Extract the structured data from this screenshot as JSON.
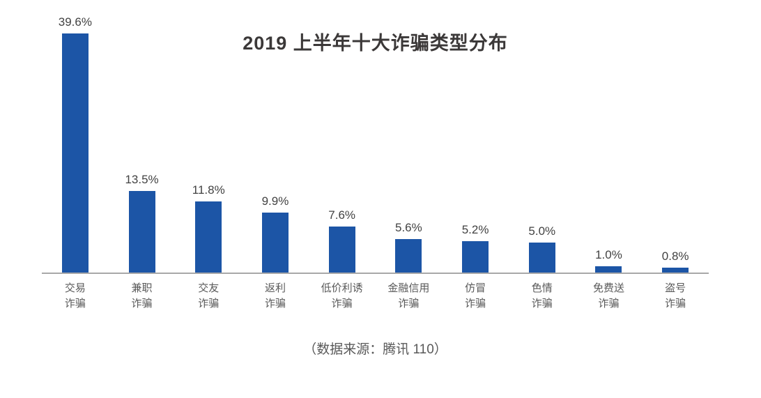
{
  "chart_data": {
    "type": "bar",
    "title": "2019 上半年十大诈骗类型分布",
    "categories": [
      "交易诈骗",
      "兼职诈骗",
      "交友诈骗",
      "返利诈骗",
      "低价利诱诈骗",
      "金融信用诈骗",
      "仿冒诈骗",
      "色情诈骗",
      "免费送诈骗",
      "盗号诈骗"
    ],
    "category_lines": [
      [
        "交易",
        "诈骗"
      ],
      [
        "兼职",
        "诈骗"
      ],
      [
        "交友",
        "诈骗"
      ],
      [
        "返利",
        "诈骗"
      ],
      [
        "低价利诱",
        "诈骗"
      ],
      [
        "金融信用",
        "诈骗"
      ],
      [
        "仿冒",
        "诈骗"
      ],
      [
        "色情",
        "诈骗"
      ],
      [
        "免费送",
        "诈骗"
      ],
      [
        "盗号",
        "诈骗"
      ]
    ],
    "values": [
      39.6,
      13.5,
      11.8,
      9.9,
      7.6,
      5.6,
      5.2,
      5.0,
      1.0,
      0.8
    ],
    "value_labels": [
      "39.6%",
      "13.5%",
      "11.8%",
      "9.9%",
      "7.6%",
      "5.6%",
      "5.2%",
      "5.0%",
      "1.0%",
      "0.8%"
    ],
    "xlabel": "",
    "ylabel": "",
    "ylim": [
      0,
      45.2
    ],
    "grid": false,
    "legend": "none",
    "bar_color": "#1c55a6",
    "axis_line_color": "#a8a8a8",
    "source_note": "（数据来源：腾讯 110）"
  }
}
